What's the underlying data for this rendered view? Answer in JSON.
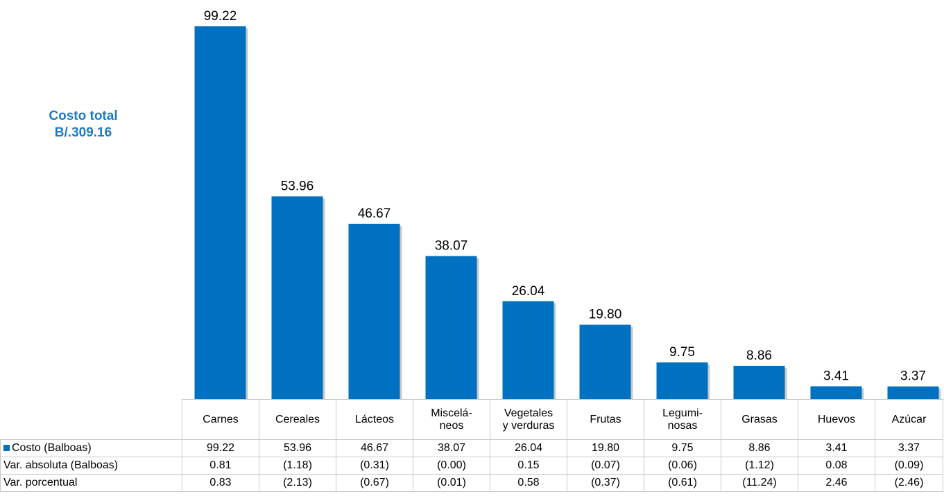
{
  "annotation": {
    "line1": "Costo total",
    "line2": "B/.309.16"
  },
  "colors": {
    "bar": "#0070c0",
    "bar_shadow": "#c9c9c9",
    "annotation": "#1f7ac4",
    "grid": "#c8c8c8"
  },
  "chart_data": {
    "type": "bar",
    "categories": [
      "Carnes",
      "Cereales",
      "Lácteos",
      "Misceláneos",
      "Vegetales y verduras",
      "Frutas",
      "Leguminosas",
      "Grasas",
      "Huevos",
      "Azúcar"
    ],
    "category_labels": [
      [
        "Carnes"
      ],
      [
        "Cereales"
      ],
      [
        "Lácteos"
      ],
      [
        "Miscelá-",
        "neos"
      ],
      [
        "Vegetales",
        "y verduras"
      ],
      [
        "Frutas"
      ],
      [
        "Legumi-",
        "nosas"
      ],
      [
        "Grasas"
      ],
      [
        "Huevos"
      ],
      [
        "Azúcar"
      ]
    ],
    "series": [
      {
        "name": "Costo (Balboas)",
        "values": [
          99.22,
          53.96,
          46.67,
          38.07,
          26.04,
          19.8,
          9.75,
          8.86,
          3.41,
          3.37
        ]
      }
    ],
    "data_labels": [
      "99.22",
      "53.96",
      "46.67",
      "38.07",
      "26.04",
      "19.80",
      "9.75",
      "8.86",
      "3.41",
      "3.37"
    ],
    "ylim": [
      0,
      100
    ],
    "grid": false,
    "legend": "table-row-key"
  },
  "table": {
    "rows": [
      {
        "label": "Costo (Balboas)",
        "legend": true,
        "cells": [
          "99.22",
          "53.96",
          "46.67",
          "38.07",
          "26.04",
          "19.80",
          "9.75",
          "8.86",
          "3.41",
          "3.37"
        ]
      },
      {
        "label": "Var. absoluta (Balboas)",
        "legend": false,
        "cells": [
          "0.81",
          "(1.18)",
          "(0.31)",
          "(0.00)",
          "0.15",
          "(0.07)",
          "(0.06)",
          "(1.12)",
          "0.08",
          "(0.09)"
        ]
      },
      {
        "label": "Var. porcentual",
        "legend": false,
        "cells": [
          "0.83",
          "(2.13)",
          "(0.67)",
          "(0.01)",
          "0.58",
          "(0.37)",
          "(0.61)",
          "(11.24)",
          "2.46",
          "(2.46)"
        ]
      }
    ]
  }
}
